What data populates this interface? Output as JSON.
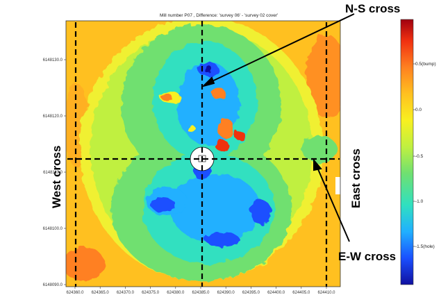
{
  "chart_data": {
    "type": "heatmap",
    "title": "Mill number P07 , Difference: 'survey 06' - 'survey 02 cover'",
    "x_ticks": [
      "624360.0",
      "624365.0",
      "624370.0",
      "624375.0",
      "624380.0",
      "624385.0",
      "624390.0",
      "624395.0",
      "624400.0",
      "624405.0",
      "624410.0"
    ],
    "y_ticks": [
      "6148130.0",
      "6148120.0",
      "6148110.0",
      "6148100.0",
      "6148090.0"
    ],
    "colorbar": {
      "ticks": [
        "0.5(bump)",
        "0.0",
        "-0.5",
        "-1.0",
        "-1.5(hole)"
      ],
      "colors": [
        "#1010a0",
        "#1a50ff",
        "#20b0ff",
        "#30e0c0",
        "#70e070",
        "#c0f040",
        "#f8f020",
        "#ffc020",
        "#ff8020",
        "#f03010",
        "#a00010"
      ]
    },
    "annotations": {
      "ns_cross": "N-S cross",
      "west_cross": "West cross",
      "east_cross": "East cross",
      "ew_cross": "E-W cross"
    }
  }
}
